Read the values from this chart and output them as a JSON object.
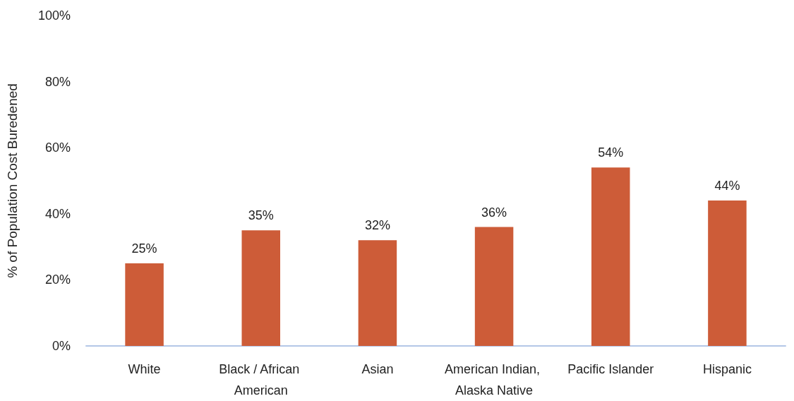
{
  "chart_data": {
    "type": "bar",
    "ylabel": "% of Population Cost Buredened",
    "categories": [
      "White",
      "Black / African American",
      "Asian",
      "American Indian, Alaska Native",
      "Pacific Islander",
      "Hispanic"
    ],
    "values": [
      25,
      35,
      32,
      36,
      54,
      44
    ],
    "value_labels": [
      "25%",
      "35%",
      "32%",
      "36%",
      "54%",
      "44%"
    ],
    "color": "#cd5c38",
    "ylim": [
      0,
      100
    ],
    "yticks": [
      {
        "value": 0,
        "label": "0%"
      },
      {
        "value": 20,
        "label": "20%"
      },
      {
        "value": 40,
        "label": "40%"
      },
      {
        "value": 60,
        "label": "60%"
      },
      {
        "value": 80,
        "label": "80%"
      },
      {
        "value": 100,
        "label": "100%"
      }
    ],
    "grid": false
  }
}
